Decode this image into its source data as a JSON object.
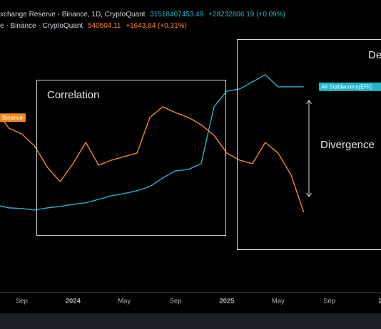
{
  "chart_data": {
    "type": "line",
    "legend_lines": [
      [
        "xchange Reserve - Binance, 1D, CryptoQuant",
        "31518407453.49",
        "+28232806.19 (+0.09%)"
      ],
      [
        "e - Binance · CryptoQuant",
        "540504.11",
        "+1643.84 (+0.31%)"
      ]
    ],
    "annotations": [
      "Correlation",
      "De",
      "Divergence"
    ],
    "x": [
      "2023-07",
      "2023-08",
      "2023-09",
      "2023-10",
      "2023-11",
      "2023-12",
      "2024-01",
      "2024-02",
      "2024-03",
      "2024-04",
      "2024-05",
      "2024-06",
      "2024-07",
      "2024-08",
      "2024-09",
      "2024-10",
      "2024-11",
      "2024-12",
      "2025-01",
      "2025-02",
      "2025-03",
      "2025-04",
      "2025-05",
      "2025-06",
      "2025-07"
    ],
    "xlim": [
      "2023-07",
      "2026-01"
    ],
    "xticks": [
      {
        "value": "2023-09",
        "label": "Sep"
      },
      {
        "value": "2024-01",
        "label": "2024"
      },
      {
        "value": "2024-05",
        "label": "May"
      },
      {
        "value": "2024-09",
        "label": "Sep"
      },
      {
        "value": "2025-01",
        "label": "2025"
      },
      {
        "value": "2025-05",
        "label": "May"
      },
      {
        "value": "2025-09",
        "label": "Sep"
      },
      {
        "value": "2026-01",
        "label": "2"
      }
    ],
    "ylim": [
      500000,
      640000
    ],
    "y2lim": [
      2000000000,
      44000000000
    ],
    "grid": false,
    "series": [
      {
        "name": "All Stablecoins(ERC",
        "color": "#22b5c9",
        "axis": "y2",
        "values": [
          14510000000,
          14100000000,
          14000000000,
          13790000000,
          14100000000,
          14300000000,
          14610000000,
          14820000000,
          15330000000,
          15840000000,
          16150000000,
          16560000000,
          17170000000,
          18400000000,
          19420000000,
          19630000000,
          20450000000,
          28640000000,
          30890000000,
          31200000000,
          32220000000,
          33250000000,
          31510000000,
          31510000000,
          31510000000
        ]
      },
      {
        "name": "Binance",
        "color": "#f5871f",
        "values": [
          587000,
          578500,
          575800,
          570000,
          559800,
          552900,
          561500,
          571700,
          560800,
          563200,
          564900,
          566600,
          583700,
          588800,
          586000,
          583700,
          580200,
          575100,
          566600,
          563200,
          561500,
          571700,
          566600,
          556300,
          538200
        ]
      }
    ]
  }
}
